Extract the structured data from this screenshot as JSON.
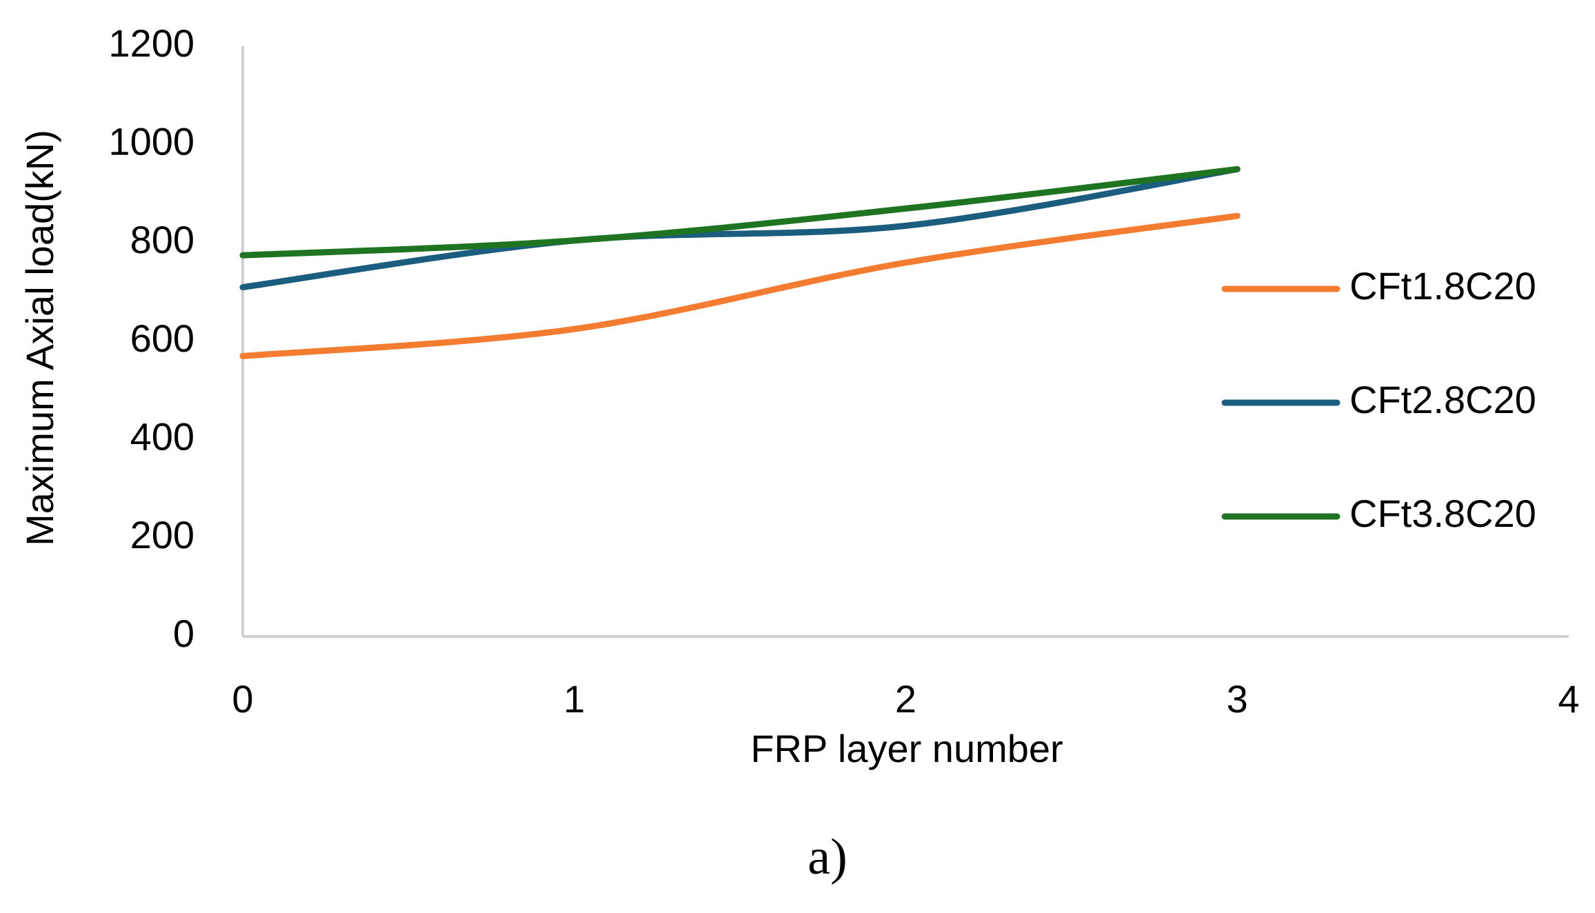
{
  "chart_data": {
    "type": "line",
    "x_label": "FRP layer number",
    "y_label": "Maximum Axial load(kN)",
    "caption": "a)",
    "x": [
      0,
      1,
      2,
      3
    ],
    "series": [
      {
        "name": "CFt1.8C20",
        "color": "#f47c30",
        "values": [
          570,
          625,
          760,
          855
        ]
      },
      {
        "name": "CFt2.8C20",
        "color": "#1a5d7e",
        "values": [
          710,
          805,
          835,
          950
        ]
      },
      {
        "name": "CFt3.8C20",
        "color": "#1e7420",
        "values": [
          775,
          805,
          870,
          950
        ]
      }
    ],
    "xlim": [
      0,
      4
    ],
    "xticks": [
      0,
      1,
      2,
      3,
      4
    ],
    "ylim": [
      0,
      1200
    ],
    "yticks": [
      0,
      200,
      400,
      600,
      800,
      1000,
      1200
    ],
    "grid": false,
    "smooth": true,
    "legend": "right"
  }
}
